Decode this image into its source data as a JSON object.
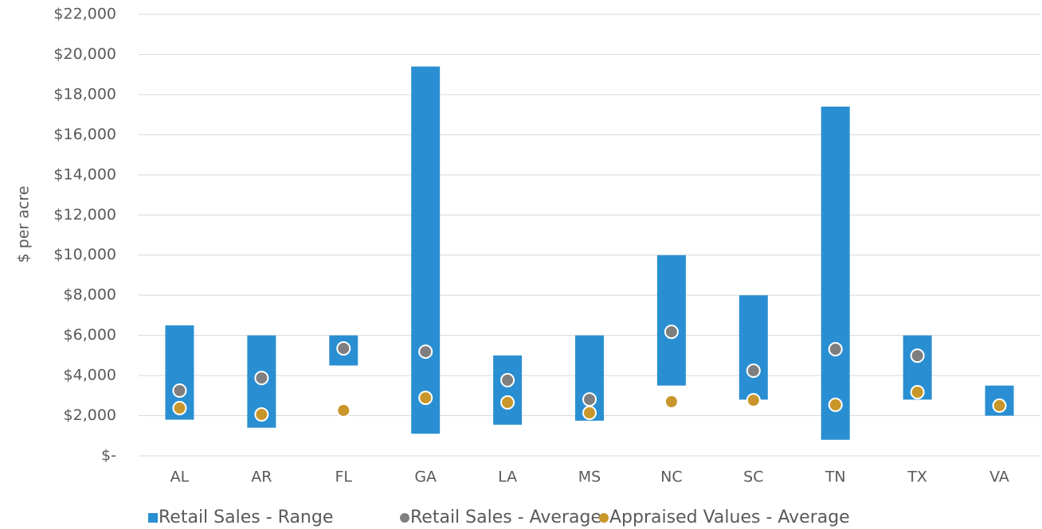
{
  "chart_data": {
    "type": "bar",
    "y_label": "$ per acre",
    "categories": [
      "AL",
      "AR",
      "FL",
      "GA",
      "LA",
      "MS",
      "NC",
      "SC",
      "TN",
      "TX",
      "VA"
    ],
    "series": [
      {
        "name": "Retail Sales - Range",
        "color": "#2a8fd2",
        "marker": "bar",
        "low": [
          1800,
          1400,
          4500,
          1100,
          1550,
          1750,
          3500,
          2800,
          800,
          2800,
          2000
        ],
        "high": [
          6500,
          6000,
          6000,
          19400,
          5000,
          6000,
          10000,
          8000,
          17400,
          6000,
          3500
        ]
      },
      {
        "name": "Retail Sales - Average",
        "color": "#7f7f7f",
        "marker": "circle",
        "values": [
          3250,
          3880,
          5350,
          5190,
          3770,
          2810,
          6180,
          4240,
          5310,
          4990,
          null
        ]
      },
      {
        "name": "Appraised Values - Average",
        "color": "#c8962a",
        "marker": "circle",
        "values": [
          2380,
          2060,
          2260,
          2890,
          2660,
          2140,
          2700,
          2770,
          2540,
          3170,
          2500
        ]
      }
    ],
    "ylim": [
      0,
      22000
    ],
    "yticks": [
      {
        "value": 0,
        "label": "$-"
      },
      {
        "value": 2000,
        "label": "$2,000"
      },
      {
        "value": 4000,
        "label": "$4,000"
      },
      {
        "value": 6000,
        "label": "$6,000"
      },
      {
        "value": 8000,
        "label": "$8,000"
      },
      {
        "value": 10000,
        "label": "$10,000"
      },
      {
        "value": 12000,
        "label": "$12,000"
      },
      {
        "value": 14000,
        "label": "$14,000"
      },
      {
        "value": 16000,
        "label": "$16,000"
      },
      {
        "value": 18000,
        "label": "$18,000"
      },
      {
        "value": 20000,
        "label": "$20,000"
      },
      {
        "value": 22000,
        "label": "$22,000"
      }
    ],
    "grid": true,
    "legend": "bottom"
  }
}
